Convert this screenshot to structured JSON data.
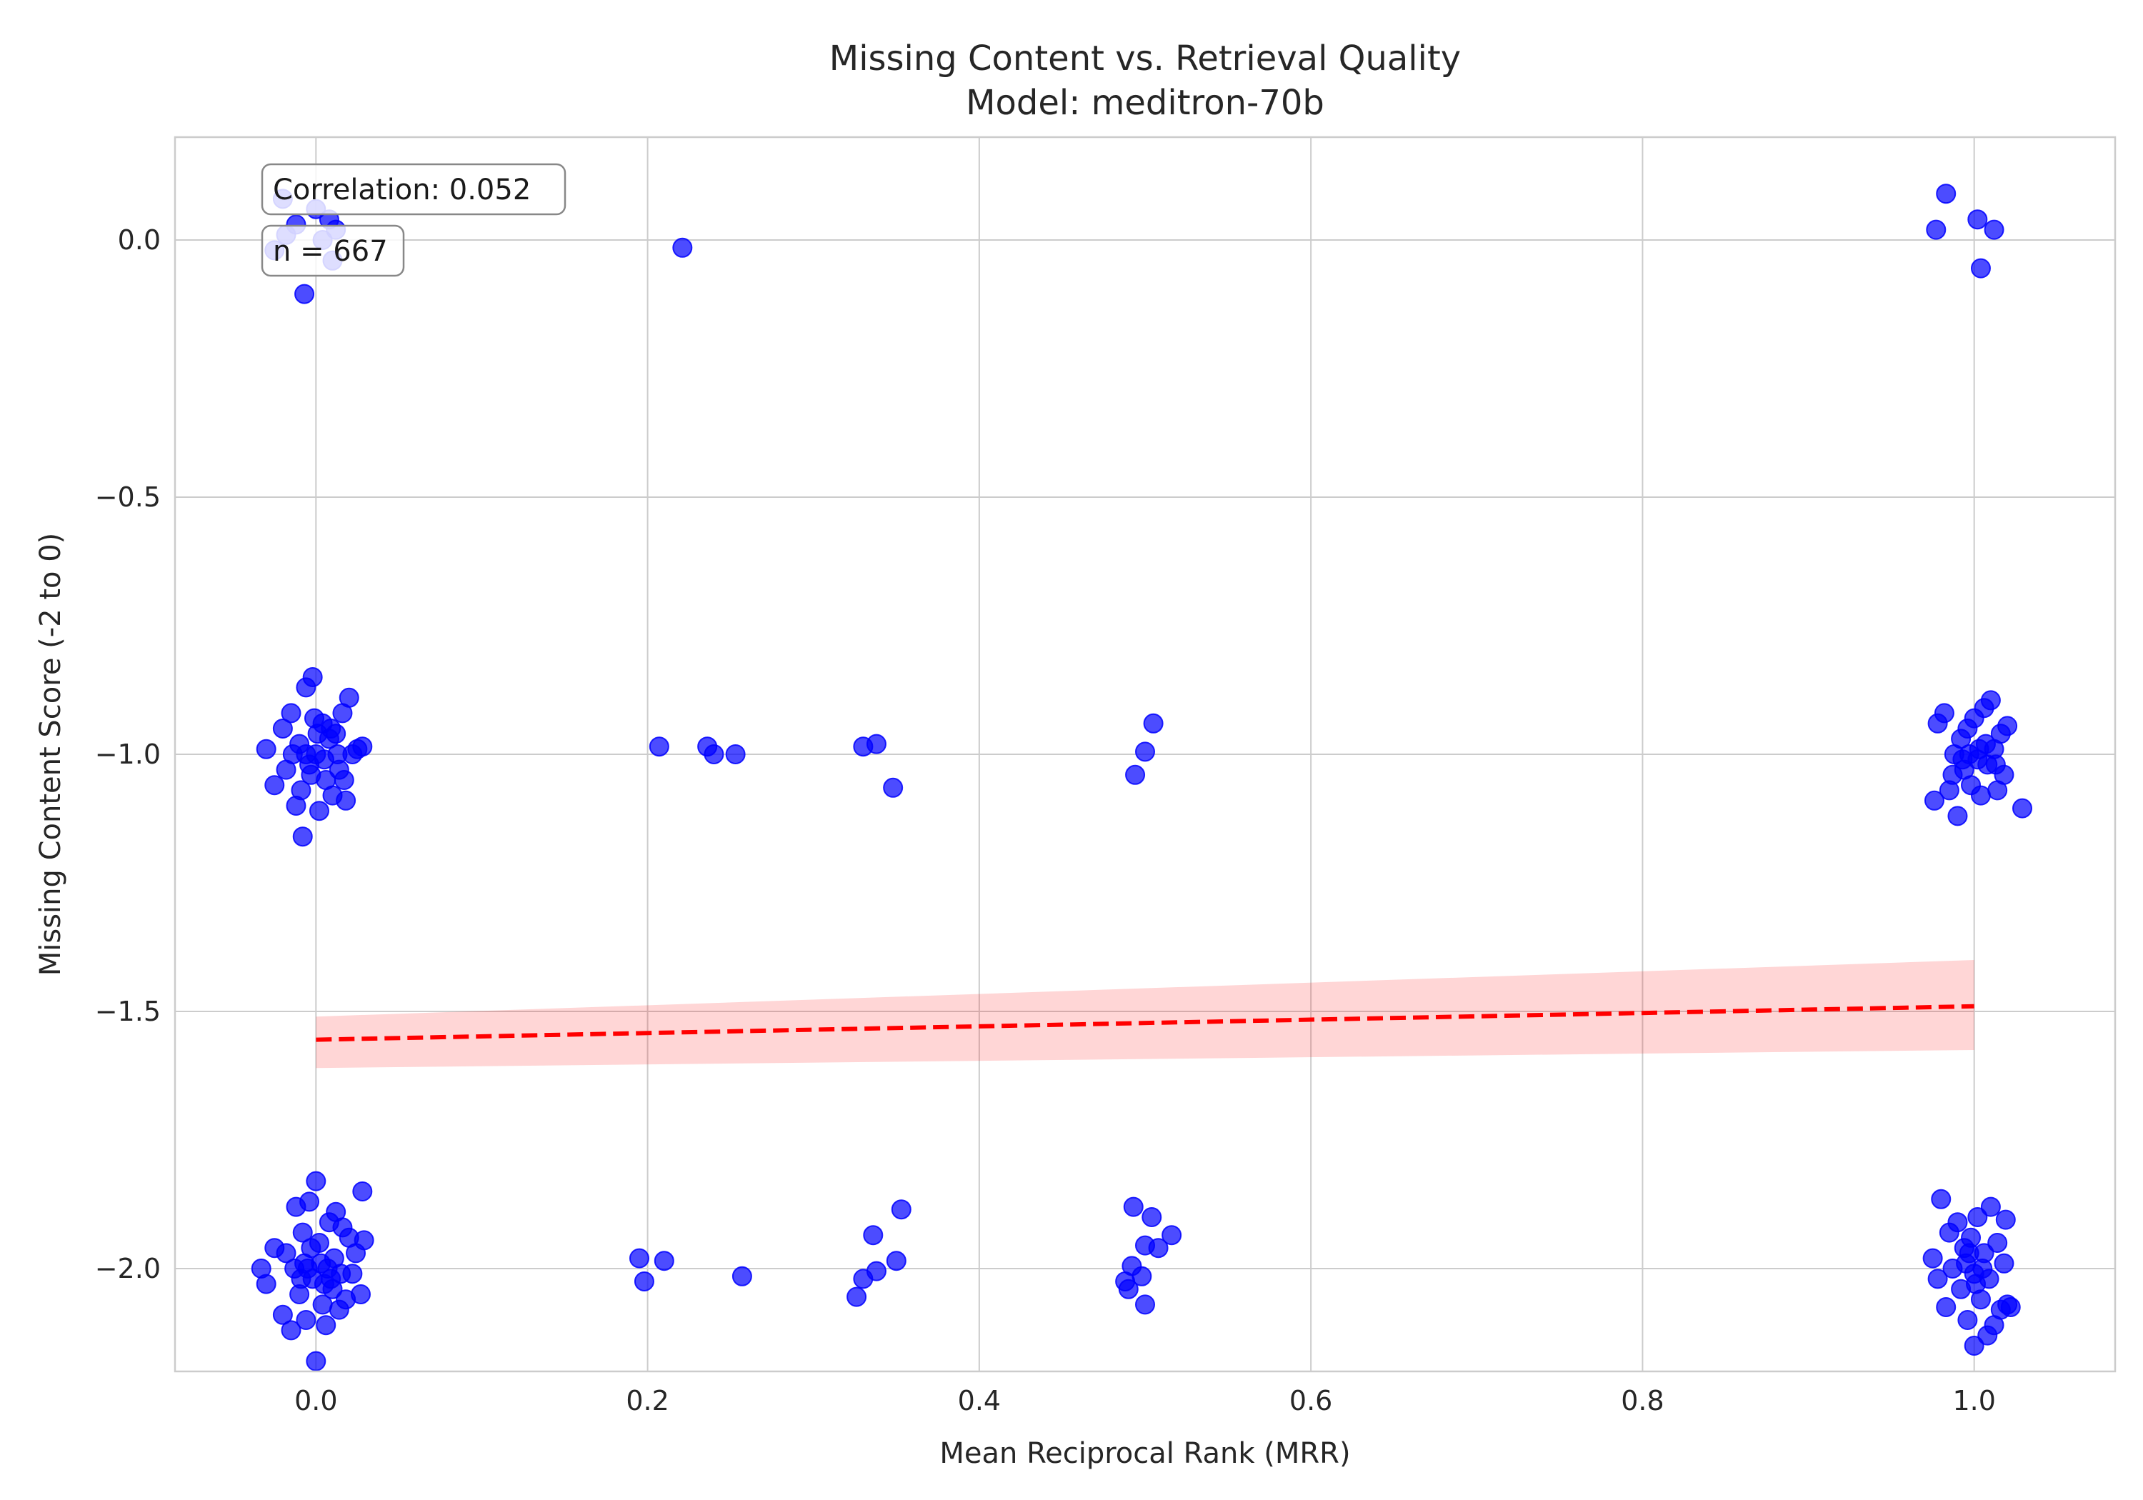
{
  "chart_data": {
    "type": "scatter",
    "title": "Missing Content vs. Retrieval Quality",
    "subtitle": "Model: meditron-70b",
    "xlabel": "Mean Reciprocal Rank (MRR)",
    "ylabel": "Missing Content Score (-2 to 0)",
    "xlim": [
      -0.085,
      1.085
    ],
    "ylim": [
      -2.2,
      0.2
    ],
    "x_ticks": [
      0.0,
      0.2,
      0.4,
      0.6,
      0.8,
      1.0
    ],
    "x_tick_labels": [
      "0.0",
      "0.2",
      "0.4",
      "0.6",
      "0.8",
      "1.0"
    ],
    "y_ticks": [
      0.0,
      -0.5,
      -1.0,
      -1.5,
      -2.0
    ],
    "y_tick_labels": [
      "0.0",
      "−0.5",
      "−1.0",
      "−1.5",
      "−2.0"
    ],
    "grid": true,
    "annotations": {
      "correlation": "Correlation: 0.052",
      "n": "n = 667"
    },
    "points": [
      [
        -0.02,
        0.08
      ],
      [
        -0.025,
        -0.02
      ],
      [
        -0.012,
        0.03
      ],
      [
        0.0,
        0.06
      ],
      [
        0.008,
        0.04
      ],
      [
        0.01,
        -0.04
      ],
      [
        0.004,
        0.0
      ],
      [
        -0.007,
        -0.105
      ],
      [
        0.012,
        0.02
      ],
      [
        -0.018,
        0.01
      ],
      [
        0.221,
        -0.015
      ],
      [
        0.983,
        0.09
      ],
      [
        0.977,
        0.02
      ],
      [
        1.002,
        0.04
      ],
      [
        1.012,
        0.02
      ],
      [
        1.004,
        -0.055
      ],
      [
        -0.03,
        -0.99
      ],
      [
        -0.025,
        -1.06
      ],
      [
        -0.02,
        -0.95
      ],
      [
        -0.018,
        -1.03
      ],
      [
        -0.015,
        -0.92
      ],
      [
        -0.012,
        -1.1
      ],
      [
        -0.01,
        -0.98
      ],
      [
        -0.008,
        -1.16
      ],
      [
        -0.006,
        -0.87
      ],
      [
        -0.004,
        -1.02
      ],
      [
        -0.002,
        -0.85
      ],
      [
        0.0,
        -1.0
      ],
      [
        0.002,
        -1.11
      ],
      [
        0.004,
        -0.94
      ],
      [
        0.006,
        -1.05
      ],
      [
        0.008,
        -0.97
      ],
      [
        0.01,
        -1.08
      ],
      [
        0.012,
        -0.96
      ],
      [
        0.014,
        -1.03
      ],
      [
        0.016,
        -0.92
      ],
      [
        0.018,
        -1.09
      ],
      [
        0.02,
        -0.89
      ],
      [
        0.022,
        -1.0
      ],
      [
        0.025,
        -0.99
      ],
      [
        0.028,
        -0.985
      ],
      [
        -0.006,
        -1.0
      ],
      [
        -0.003,
        -1.04
      ],
      [
        0.001,
        -0.96
      ],
      [
        0.005,
        -1.01
      ],
      [
        0.009,
        -0.95
      ],
      [
        -0.014,
        -1.0
      ],
      [
        -0.009,
        -1.07
      ],
      [
        0.013,
        -1.0
      ],
      [
        0.017,
        -1.05
      ],
      [
        -0.001,
        -0.93
      ],
      [
        0.207,
        -0.985
      ],
      [
        0.236,
        -0.985
      ],
      [
        0.24,
        -1.0
      ],
      [
        0.253,
        -1.0
      ],
      [
        0.33,
        -0.985
      ],
      [
        0.338,
        -0.98
      ],
      [
        0.348,
        -1.065
      ],
      [
        0.494,
        -1.04
      ],
      [
        0.5,
        -0.995
      ],
      [
        0.505,
        -0.94
      ],
      [
        0.978,
        -0.94
      ],
      [
        0.976,
        -1.09
      ],
      [
        0.982,
        -0.92
      ],
      [
        0.985,
        -1.07
      ],
      [
        0.988,
        -1.0
      ],
      [
        0.99,
        -1.12
      ],
      [
        0.992,
        -0.97
      ],
      [
        0.994,
        -1.03
      ],
      [
        0.996,
        -0.95
      ],
      [
        0.998,
        -1.06
      ],
      [
        1.0,
        -0.93
      ],
      [
        1.002,
        -1.01
      ],
      [
        1.004,
        -1.08
      ],
      [
        1.006,
        -0.91
      ],
      [
        1.008,
        -1.02
      ],
      [
        1.01,
        -0.895
      ],
      [
        1.012,
        -0.99
      ],
      [
        1.014,
        -1.07
      ],
      [
        1.016,
        -0.96
      ],
      [
        1.018,
        -1.04
      ],
      [
        1.02,
        -0.945
      ],
      [
        1.029,
        -1.105
      ],
      [
        0.997,
        -1.0
      ],
      [
        1.003,
        -0.99
      ],
      [
        0.993,
        -1.01
      ],
      [
        1.007,
        -0.98
      ],
      [
        0.987,
        -1.04
      ],
      [
        1.013,
        -1.02
      ],
      [
        -0.033,
        -2.0
      ],
      [
        -0.03,
        -2.03
      ],
      [
        -0.025,
        -1.96
      ],
      [
        -0.02,
        -2.09
      ],
      [
        -0.018,
        -1.97
      ],
      [
        -0.015,
        -2.12
      ],
      [
        -0.012,
        -1.88
      ],
      [
        -0.01,
        -2.05
      ],
      [
        -0.008,
        -1.93
      ],
      [
        -0.006,
        -2.1
      ],
      [
        -0.004,
        -1.87
      ],
      [
        -0.002,
        -2.02
      ],
      [
        0.0,
        -1.83
      ],
      [
        0.0,
        -2.18
      ],
      [
        0.002,
        -1.95
      ],
      [
        0.004,
        -2.07
      ],
      [
        0.006,
        -2.11
      ],
      [
        0.008,
        -1.91
      ],
      [
        0.01,
        -2.04
      ],
      [
        0.012,
        -1.89
      ],
      [
        0.014,
        -2.08
      ],
      [
        0.016,
        -1.92
      ],
      [
        0.018,
        -2.06
      ],
      [
        0.02,
        -1.94
      ],
      [
        0.022,
        -2.01
      ],
      [
        0.024,
        -1.97
      ],
      [
        0.027,
        -2.05
      ],
      [
        0.028,
        -1.85
      ],
      [
        0.029,
        -1.945
      ],
      [
        -0.005,
        -2.0
      ],
      [
        0.003,
        -1.99
      ],
      [
        0.007,
        -2.0
      ],
      [
        -0.009,
        -2.02
      ],
      [
        0.011,
        -1.98
      ],
      [
        -0.003,
        -1.96
      ],
      [
        0.005,
        -2.03
      ],
      [
        -0.013,
        -2.0
      ],
      [
        0.015,
        -2.01
      ],
      [
        -0.007,
        -1.99
      ],
      [
        0.009,
        -2.02
      ],
      [
        0.195,
        -1.98
      ],
      [
        0.198,
        -2.025
      ],
      [
        0.21,
        -1.985
      ],
      [
        0.257,
        -2.015
      ],
      [
        0.326,
        -2.055
      ],
      [
        0.33,
        -2.02
      ],
      [
        0.336,
        -1.935
      ],
      [
        0.338,
        -2.005
      ],
      [
        0.35,
        -1.985
      ],
      [
        0.353,
        -1.885
      ],
      [
        0.488,
        -2.025
      ],
      [
        0.49,
        -2.04
      ],
      [
        0.492,
        -1.995
      ],
      [
        0.493,
        -1.88
      ],
      [
        0.498,
        -2.015
      ],
      [
        0.5,
        -1.955
      ],
      [
        0.5,
        -2.07
      ],
      [
        0.504,
        -1.9
      ],
      [
        0.508,
        -1.96
      ],
      [
        0.516,
        -1.935
      ],
      [
        0.975,
        -1.98
      ],
      [
        0.978,
        -2.02
      ],
      [
        0.98,
        -1.865
      ],
      [
        0.983,
        -2.075
      ],
      [
        0.985,
        -1.93
      ],
      [
        0.987,
        -2.0
      ],
      [
        0.99,
        -1.91
      ],
      [
        0.992,
        -2.04
      ],
      [
        0.994,
        -1.96
      ],
      [
        0.996,
        -2.1
      ],
      [
        0.998,
        -1.94
      ],
      [
        1.0,
        -2.15
      ],
      [
        1.0,
        -2.01
      ],
      [
        1.002,
        -1.9
      ],
      [
        1.004,
        -2.06
      ],
      [
        1.006,
        -1.97
      ],
      [
        1.008,
        -2.13
      ],
      [
        1.01,
        -1.88
      ],
      [
        1.012,
        -2.11
      ],
      [
        1.014,
        -1.95
      ],
      [
        1.016,
        -2.08
      ],
      [
        1.018,
        -1.99
      ],
      [
        1.02,
        -2.07
      ],
      [
        1.022,
        -2.075
      ],
      [
        1.019,
        -1.905
      ],
      [
        1.005,
        -2.0
      ],
      [
        0.995,
        -1.99
      ],
      [
        1.001,
        -2.03
      ],
      [
        0.997,
        -1.97
      ],
      [
        1.009,
        -2.02
      ]
    ],
    "trend_line": {
      "x": [
        0.0,
        1.0
      ],
      "y": [
        -1.555,
        -1.49
      ]
    },
    "confidence_band": {
      "x": [
        0.0,
        1.0
      ],
      "upper": [
        -1.51,
        -1.4
      ],
      "lower": [
        -1.61,
        -1.575
      ]
    },
    "colors": {
      "points": "#0000ff",
      "trend": "#ff0000",
      "band": "#ff0000",
      "grid": "#cccccc"
    }
  }
}
